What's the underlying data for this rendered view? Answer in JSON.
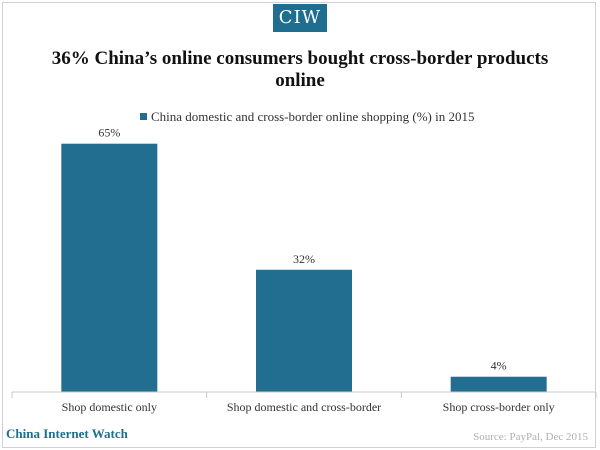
{
  "header": {
    "logo_text": "CIW"
  },
  "chart_data": {
    "type": "bar",
    "title": "36% China’s online consumers bought cross-border products online",
    "categories": [
      "Shop domestic only",
      "Shop domestic and cross-border",
      "Shop cross-border only"
    ],
    "series": [
      {
        "name": "China domestic and cross-border online shopping (%) in 2015",
        "values": [
          65,
          32,
          4
        ]
      }
    ],
    "data_labels": [
      "65%",
      "32%",
      "4%"
    ],
    "ylim": [
      0,
      70
    ],
    "grid": false,
    "legend": "top-center",
    "bar_color": "#226e91"
  },
  "footer": {
    "brand": "China Internet Watch",
    "source": "Source: PayPal, Dec 2015"
  }
}
